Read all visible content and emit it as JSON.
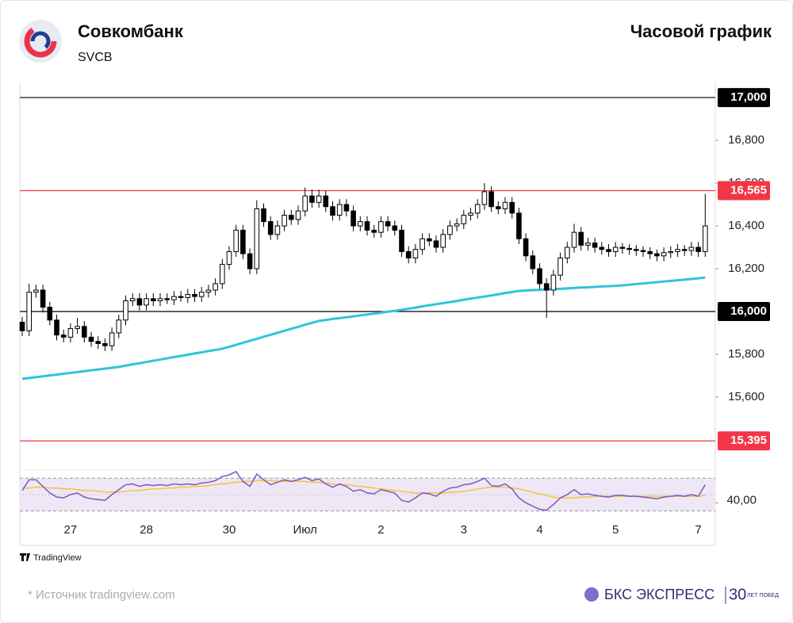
{
  "header": {
    "company": "Совкомбанк",
    "ticker": "SVCB",
    "chart_kind": "Часовой график"
  },
  "footer": {
    "tv": "TradingView",
    "source": "* Источник tradingview.com",
    "brand": "БКС ЭКСПРЕСС",
    "years": "30",
    "years_note": "ЛЕТ ПОБЕД"
  },
  "chart_data": {
    "type": "candlestick",
    "categories": [
      null,
      null,
      null,
      null,
      null,
      null,
      null,
      "27",
      null,
      null,
      null,
      null,
      null,
      null,
      null,
      null,
      null,
      null,
      "28",
      null,
      null,
      null,
      null,
      null,
      null,
      null,
      null,
      null,
      null,
      null,
      "30",
      null,
      null,
      null,
      null,
      null,
      null,
      null,
      null,
      null,
      null,
      "Июл",
      null,
      null,
      null,
      null,
      null,
      null,
      null,
      null,
      null,
      null,
      "2",
      null,
      null,
      null,
      null,
      null,
      null,
      null,
      null,
      null,
      null,
      null,
      "3",
      null,
      null,
      null,
      null,
      null,
      null,
      null,
      null,
      null,
      null,
      "4",
      null,
      null,
      null,
      null,
      null,
      null,
      null,
      null,
      null,
      null,
      "5",
      null,
      null,
      null,
      null,
      null,
      null,
      null,
      null,
      null,
      null,
      null,
      "7",
      null
    ],
    "open": [
      15950,
      15910,
      16090,
      16100,
      16020,
      15960,
      15890,
      15880,
      15920,
      15930,
      15880,
      15860,
      15850,
      15840,
      15900,
      15960,
      16050,
      16060,
      16030,
      16060,
      16050,
      16060,
      16055,
      16070,
      16065,
      16080,
      16070,
      16090,
      16100,
      16130,
      16220,
      16280,
      16380,
      16270,
      16200,
      16480,
      16420,
      16360,
      16400,
      16450,
      16430,
      16470,
      16540,
      16510,
      16540,
      16490,
      16450,
      16500,
      16470,
      16400,
      16420,
      16380,
      16370,
      16420,
      16400,
      16380,
      16280,
      16250,
      16290,
      16340,
      16330,
      16300,
      16360,
      16400,
      16410,
      16450,
      16460,
      16500,
      16560,
      16490,
      16480,
      16510,
      16460,
      16340,
      16260,
      16200,
      16130,
      16100,
      16170,
      16250,
      16300,
      16370,
      16310,
      16320,
      16300,
      16290,
      16280,
      16300,
      16295,
      16290,
      16285,
      16280,
      16270,
      16260,
      16275,
      16280,
      16290,
      16285,
      16300,
      16280
    ],
    "high": [
      15975,
      16130,
      16125,
      16125,
      16045,
      15985,
      15915,
      15945,
      15970,
      15955,
      15905,
      15885,
      15875,
      15925,
      15985,
      16075,
      16085,
      16085,
      16085,
      16085,
      16085,
      16085,
      16095,
      16095,
      16105,
      16105,
      16115,
      16125,
      16155,
      16245,
      16305,
      16405,
      16405,
      16295,
      16520,
      16505,
      16445,
      16425,
      16475,
      16475,
      16495,
      16580,
      16570,
      16570,
      16565,
      16515,
      16525,
      16525,
      16495,
      16445,
      16445,
      16405,
      16445,
      16445,
      16425,
      16405,
      16305,
      16315,
      16365,
      16365,
      16355,
      16385,
      16425,
      16435,
      16475,
      16485,
      16525,
      16600,
      16585,
      16515,
      16535,
      16535,
      16485,
      16365,
      16285,
      16225,
      16155,
      16195,
      16275,
      16325,
      16410,
      16395,
      16345,
      16345,
      16325,
      16315,
      16325,
      16320,
      16315,
      16310,
      16305,
      16300,
      16290,
      16300,
      16305,
      16315,
      16310,
      16325,
      16325,
      16550
    ],
    "low": [
      15885,
      15885,
      16065,
      15995,
      15935,
      15865,
      15855,
      15855,
      15895,
      15855,
      15835,
      15825,
      15815,
      15815,
      15875,
      15935,
      16025,
      16005,
      16005,
      16025,
      16025,
      16035,
      16030,
      16045,
      16040,
      16045,
      16045,
      16065,
      16075,
      16105,
      16195,
      16255,
      16245,
      16175,
      16175,
      16395,
      16335,
      16335,
      16375,
      16405,
      16405,
      16445,
      16485,
      16485,
      16465,
      16425,
      16425,
      16445,
      16375,
      16375,
      16355,
      16345,
      16345,
      16375,
      16355,
      16255,
      16225,
      16225,
      16265,
      16305,
      16275,
      16275,
      16335,
      16375,
      16385,
      16425,
      16435,
      16475,
      16465,
      16455,
      16455,
      16435,
      16315,
      16235,
      16175,
      16105,
      15970,
      16075,
      16145,
      16225,
      16275,
      16285,
      16285,
      16275,
      16265,
      16255,
      16255,
      16270,
      16265,
      16260,
      16255,
      16245,
      16235,
      16235,
      16250,
      16255,
      16260,
      16260,
      16255,
      16255
    ],
    "close": [
      15910,
      16090,
      16100,
      16020,
      15960,
      15890,
      15880,
      15920,
      15930,
      15880,
      15860,
      15850,
      15840,
      15900,
      15960,
      16050,
      16060,
      16030,
      16060,
      16050,
      16060,
      16055,
      16070,
      16065,
      16080,
      16070,
      16090,
      16100,
      16130,
      16220,
      16280,
      16380,
      16270,
      16200,
      16480,
      16420,
      16360,
      16400,
      16450,
      16430,
      16470,
      16540,
      16510,
      16540,
      16490,
      16450,
      16500,
      16470,
      16400,
      16420,
      16380,
      16370,
      16420,
      16400,
      16380,
      16280,
      16250,
      16290,
      16340,
      16330,
      16300,
      16360,
      16400,
      16410,
      16450,
      16460,
      16500,
      16560,
      16490,
      16480,
      16510,
      16460,
      16340,
      16260,
      16200,
      16130,
      16100,
      16170,
      16250,
      16300,
      16370,
      16310,
      16320,
      16300,
      16290,
      16280,
      16300,
      16295,
      16290,
      16285,
      16280,
      16270,
      16260,
      16275,
      16280,
      16290,
      16285,
      16300,
      16280,
      16400
    ],
    "up_color": "#ffffff",
    "down_color": "#000000",
    "ma": {
      "color": "#2ec5d8",
      "values": [
        15685,
        15689,
        15693,
        15697,
        15701,
        15705,
        15709,
        15713,
        15717,
        15721,
        15725,
        15729,
        15733,
        15737,
        15741,
        15747,
        15753,
        15758,
        15764,
        15770,
        15775,
        15781,
        15787,
        15792,
        15798,
        15804,
        15809,
        15815,
        15820,
        15826,
        15835,
        15844,
        15854,
        15863,
        15872,
        15882,
        15891,
        15900,
        15910,
        15919,
        15928,
        15938,
        15947,
        15956,
        15960,
        15965,
        15969,
        15973,
        15977,
        15982,
        15986,
        15990,
        15994,
        15999,
        16003,
        16008,
        16013,
        16018,
        16024,
        16029,
        16034,
        16039,
        16044,
        16049,
        16055,
        16060,
        16065,
        16070,
        16075,
        16080,
        16086,
        16091,
        16096,
        16098,
        16100,
        16101,
        16103,
        16105,
        16106,
        16108,
        16110,
        16112,
        16113,
        16115,
        16117,
        16118,
        16120,
        16122,
        16125,
        16128,
        16131,
        16134,
        16137,
        16140,
        16143,
        16146,
        16149,
        16152,
        16155,
        16159
      ]
    },
    "ylim": [
      15270,
      17067
    ],
    "yticks": [
      {
        "value": 15600,
        "label": "15,600"
      },
      {
        "value": 15800,
        "label": "15,800"
      },
      {
        "value": 16200,
        "label": "16,200"
      },
      {
        "value": 16400,
        "label": "16,400"
      },
      {
        "value": 16600,
        "label": "16,600"
      },
      {
        "value": 16800,
        "label": "16,800"
      }
    ],
    "levels": [
      {
        "value": 17000,
        "label": "17,000",
        "color": "#000000"
      },
      {
        "value": 16565,
        "label": "16,565",
        "color": "#f23645"
      },
      {
        "value": 16000,
        "label": "16,000",
        "color": "#000000"
      },
      {
        "value": 15395,
        "label": "15,395",
        "color": "#f23645"
      }
    ],
    "rsi": {
      "color": "#7e57c2",
      "values": [
        55,
        68,
        68,
        60,
        52,
        47,
        46,
        50,
        52,
        47,
        45,
        44,
        43,
        50,
        56,
        62,
        63,
        60,
        62,
        61,
        62,
        61,
        63,
        62,
        63,
        62,
        64,
        65,
        67,
        72,
        74,
        78,
        66,
        60,
        75,
        68,
        62,
        65,
        68,
        66,
        68,
        71,
        67,
        69,
        63,
        59,
        63,
        60,
        54,
        56,
        52,
        51,
        56,
        54,
        52,
        43,
        41,
        46,
        52,
        51,
        48,
        54,
        58,
        59,
        62,
        63,
        66,
        70,
        61,
        60,
        63,
        57,
        46,
        40,
        36,
        32,
        31,
        38,
        46,
        50,
        56,
        50,
        51,
        49,
        48,
        47,
        49,
        49,
        48,
        48,
        47,
        46,
        45,
        47,
        48,
        49,
        48,
        50,
        48,
        62
      ]
    },
    "rsi_ma": {
      "color": "#f5c53a",
      "values": [
        58,
        58,
        59,
        59,
        58,
        58,
        57,
        57,
        56,
        55,
        55,
        54,
        53,
        53,
        53,
        54,
        55,
        55,
        56,
        57,
        57,
        58,
        58,
        59,
        59,
        60,
        60,
        61,
        62,
        63,
        64,
        65,
        66,
        66,
        67,
        67,
        67,
        66,
        66,
        66,
        66,
        66,
        65,
        65,
        64,
        63,
        62,
        62,
        61,
        60,
        59,
        58,
        57,
        56,
        55,
        54,
        53,
        52,
        52,
        52,
        52,
        52,
        53,
        53,
        54,
        55,
        57,
        58,
        59,
        59,
        59,
        58,
        57,
        55,
        53,
        51,
        49,
        47,
        46,
        46,
        46,
        47,
        47,
        48,
        48,
        48,
        48,
        48,
        48,
        48,
        48,
        48,
        48,
        48,
        48,
        48,
        48,
        48,
        48,
        49
      ]
    },
    "rsi_ylim": [
      23,
      77
    ],
    "rsi_band": [
      30,
      70
    ],
    "rsi_mid": 50,
    "rsi_yticks": [
      {
        "value": 40,
        "label": "40,00"
      }
    ]
  }
}
